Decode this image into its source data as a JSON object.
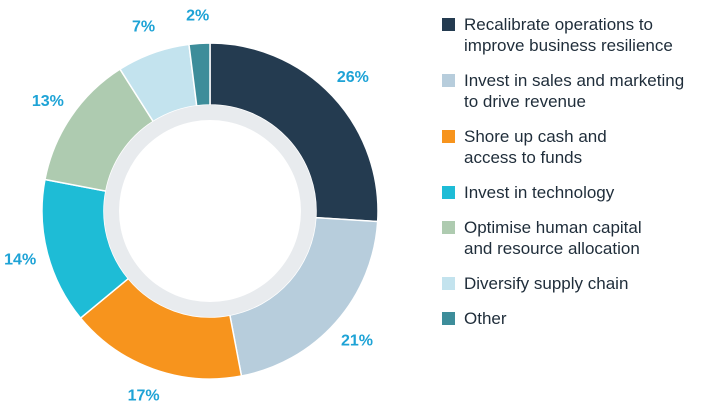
{
  "chart_data": {
    "type": "pie",
    "donut": true,
    "legend_position": "right",
    "slices": [
      {
        "label": "Recalibrate operations to\nimprove business resilience",
        "value": 26,
        "value_label": "26%",
        "color": "#243b50"
      },
      {
        "label": "Invest in sales and marketing\nto drive revenue",
        "value": 21,
        "value_label": "21%",
        "color": "#b7cddc"
      },
      {
        "label": "Shore up cash and\naccess to funds",
        "value": 17,
        "value_label": "17%",
        "color": "#f7941d"
      },
      {
        "label": "Invest in technology",
        "value": 14,
        "value_label": "14%",
        "color": "#1ebcd6"
      },
      {
        "label": "Optimise human capital\nand resource allocation",
        "value": 13,
        "value_label": "13%",
        "color": "#aecbb0"
      },
      {
        "label": "Diversify supply chain",
        "value": 7,
        "value_label": "7%",
        "color": "#c3e3ee"
      },
      {
        "label": "Other",
        "value": 2,
        "value_label": "2%",
        "color": "#3d8d9a"
      }
    ],
    "label_color": "#1ea3d6",
    "inner_ring_color": "#e8ebee"
  }
}
